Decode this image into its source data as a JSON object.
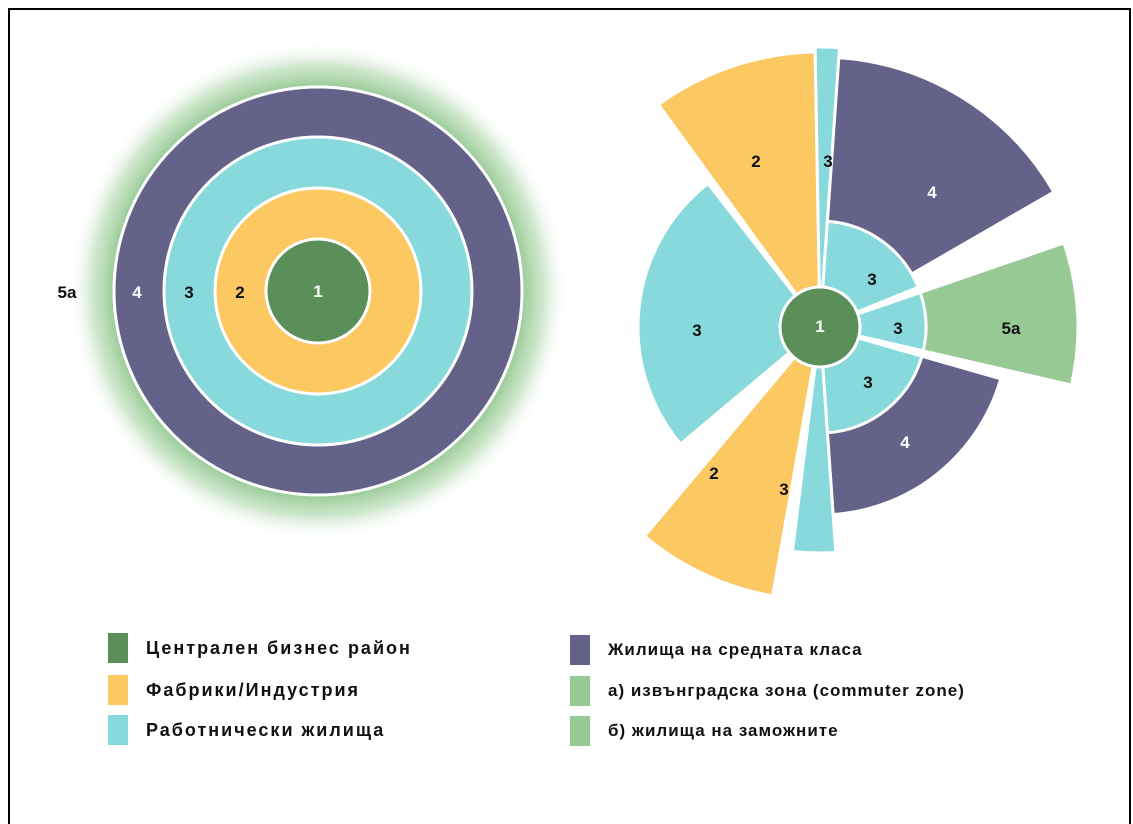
{
  "colors": {
    "cbd": "#5a8f5a",
    "factories": "#fcc862",
    "workers": "#88d9dc",
    "middle": "#646288",
    "commuter": "#97c995"
  },
  "left_diagram": {
    "labels": {
      "zone1": "1",
      "zone2": "2",
      "zone3": "3",
      "zone4": "4",
      "zone5a": "5a"
    }
  },
  "right_diagram": {
    "labels": {
      "center": "1",
      "sector_2_top": "2",
      "sector_3_thin": "3",
      "sector_4_top": "4",
      "sector_3_inner_top": "3",
      "sector_3_inner_right": "3",
      "sector_5a": "5a",
      "sector_3_inner_bottom": "3",
      "sector_4_bottom": "4",
      "sector_3_left": "3",
      "sector_2_bottom": "2",
      "sector_3_bottom": "3"
    }
  },
  "legend": {
    "left": [
      {
        "label": "Централен бизнес район",
        "color": "#5a8f5a"
      },
      {
        "label": "Фабрики/Индустрия",
        "color": "#fcc862"
      },
      {
        "label": "Работнически жилища",
        "color": "#88d9dc"
      }
    ],
    "right": [
      {
        "label": "Жилища на средната класа",
        "color": "#646288"
      },
      {
        "label": "а) извънградска зона (commuter zone)",
        "color": "#97c995"
      },
      {
        "label": "б) жилища на заможните",
        "color": "#97c995"
      }
    ]
  }
}
